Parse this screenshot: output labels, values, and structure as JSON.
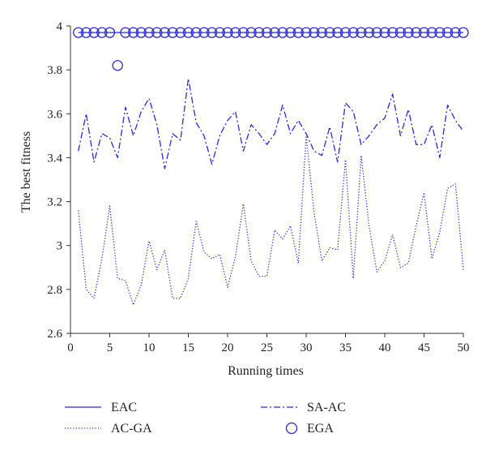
{
  "chart_data": {
    "type": "line",
    "xlabel": "Running times",
    "ylabel": "The best fitness",
    "xlim": [
      0,
      50
    ],
    "ylim": [
      2.6,
      4.0
    ],
    "xticks": [
      "0",
      "5",
      "10",
      "15",
      "20",
      "25",
      "30",
      "35",
      "40",
      "45",
      "50"
    ],
    "yticks": [
      "2.6",
      "2.8",
      "3",
      "3.2",
      "3.4",
      "3.6",
      "3.8",
      "4"
    ],
    "legend_position": "bottom",
    "x": [
      1,
      2,
      3,
      4,
      5,
      6,
      7,
      8,
      9,
      10,
      11,
      12,
      13,
      14,
      15,
      16,
      17,
      18,
      19,
      20,
      21,
      22,
      23,
      24,
      25,
      26,
      27,
      28,
      29,
      30,
      31,
      32,
      33,
      34,
      35,
      36,
      37,
      38,
      39,
      40,
      41,
      42,
      43,
      44,
      45,
      46,
      47,
      48,
      49,
      50
    ],
    "series": [
      {
        "name": "EAC",
        "style": "solid",
        "color": "#2a2ad4",
        "values": [
          3.97,
          3.97,
          3.97,
          3.97,
          3.97,
          3.97,
          3.97,
          3.97,
          3.97,
          3.97,
          3.97,
          3.97,
          3.97,
          3.97,
          3.97,
          3.97,
          3.97,
          3.97,
          3.97,
          3.97,
          3.97,
          3.97,
          3.97,
          3.97,
          3.97,
          3.97,
          3.97,
          3.97,
          3.97,
          3.97,
          3.97,
          3.97,
          3.97,
          3.97,
          3.97,
          3.97,
          3.97,
          3.97,
          3.97,
          3.97,
          3.97,
          3.97,
          3.97,
          3.97,
          3.97,
          3.97,
          3.97,
          3.97,
          3.97,
          3.97
        ]
      },
      {
        "name": "SA-AC",
        "style": "dashdot",
        "color": "#2a2ad4",
        "values": [
          3.43,
          3.6,
          3.38,
          3.51,
          3.49,
          3.4,
          3.63,
          3.5,
          3.61,
          3.67,
          3.55,
          3.35,
          3.51,
          3.48,
          3.76,
          3.56,
          3.5,
          3.37,
          3.5,
          3.57,
          3.61,
          3.43,
          3.55,
          3.51,
          3.46,
          3.51,
          3.64,
          3.51,
          3.57,
          3.51,
          3.43,
          3.41,
          3.54,
          3.38,
          3.65,
          3.61,
          3.46,
          3.5,
          3.55,
          3.58,
          3.69,
          3.5,
          3.62,
          3.46,
          3.46,
          3.55,
          3.4,
          3.64,
          3.57,
          3.52
        ]
      },
      {
        "name": "AC-GA",
        "style": "dotted",
        "color": "#2a2ad4",
        "values": [
          3.16,
          2.8,
          2.76,
          2.94,
          3.18,
          2.85,
          2.84,
          2.73,
          2.82,
          3.02,
          2.89,
          2.98,
          2.76,
          2.76,
          2.85,
          3.11,
          2.97,
          2.94,
          2.96,
          2.81,
          2.95,
          3.19,
          2.93,
          2.86,
          2.86,
          3.07,
          3.03,
          3.09,
          2.92,
          3.5,
          3.15,
          2.93,
          2.99,
          2.98,
          3.39,
          2.85,
          3.41,
          3.09,
          2.88,
          2.93,
          3.05,
          2.9,
          2.92,
          3.09,
          3.24,
          2.94,
          3.06,
          3.26,
          3.28,
          2.89
        ]
      },
      {
        "name": "EGA",
        "style": "circle",
        "color": "#2a2ad4",
        "values": [
          3.97,
          3.97,
          3.97,
          3.97,
          3.97,
          3.82,
          3.97,
          3.97,
          3.97,
          3.97,
          3.97,
          3.97,
          3.97,
          3.97,
          3.97,
          3.97,
          3.97,
          3.97,
          3.97,
          3.97,
          3.97,
          3.97,
          3.97,
          3.97,
          3.97,
          3.97,
          3.97,
          3.97,
          3.97,
          3.97,
          3.97,
          3.97,
          3.97,
          3.97,
          3.97,
          3.97,
          3.97,
          3.97,
          3.97,
          3.97,
          3.97,
          3.97,
          3.97,
          3.97,
          3.97,
          3.97,
          3.97,
          3.97,
          3.97,
          3.97
        ]
      }
    ]
  }
}
